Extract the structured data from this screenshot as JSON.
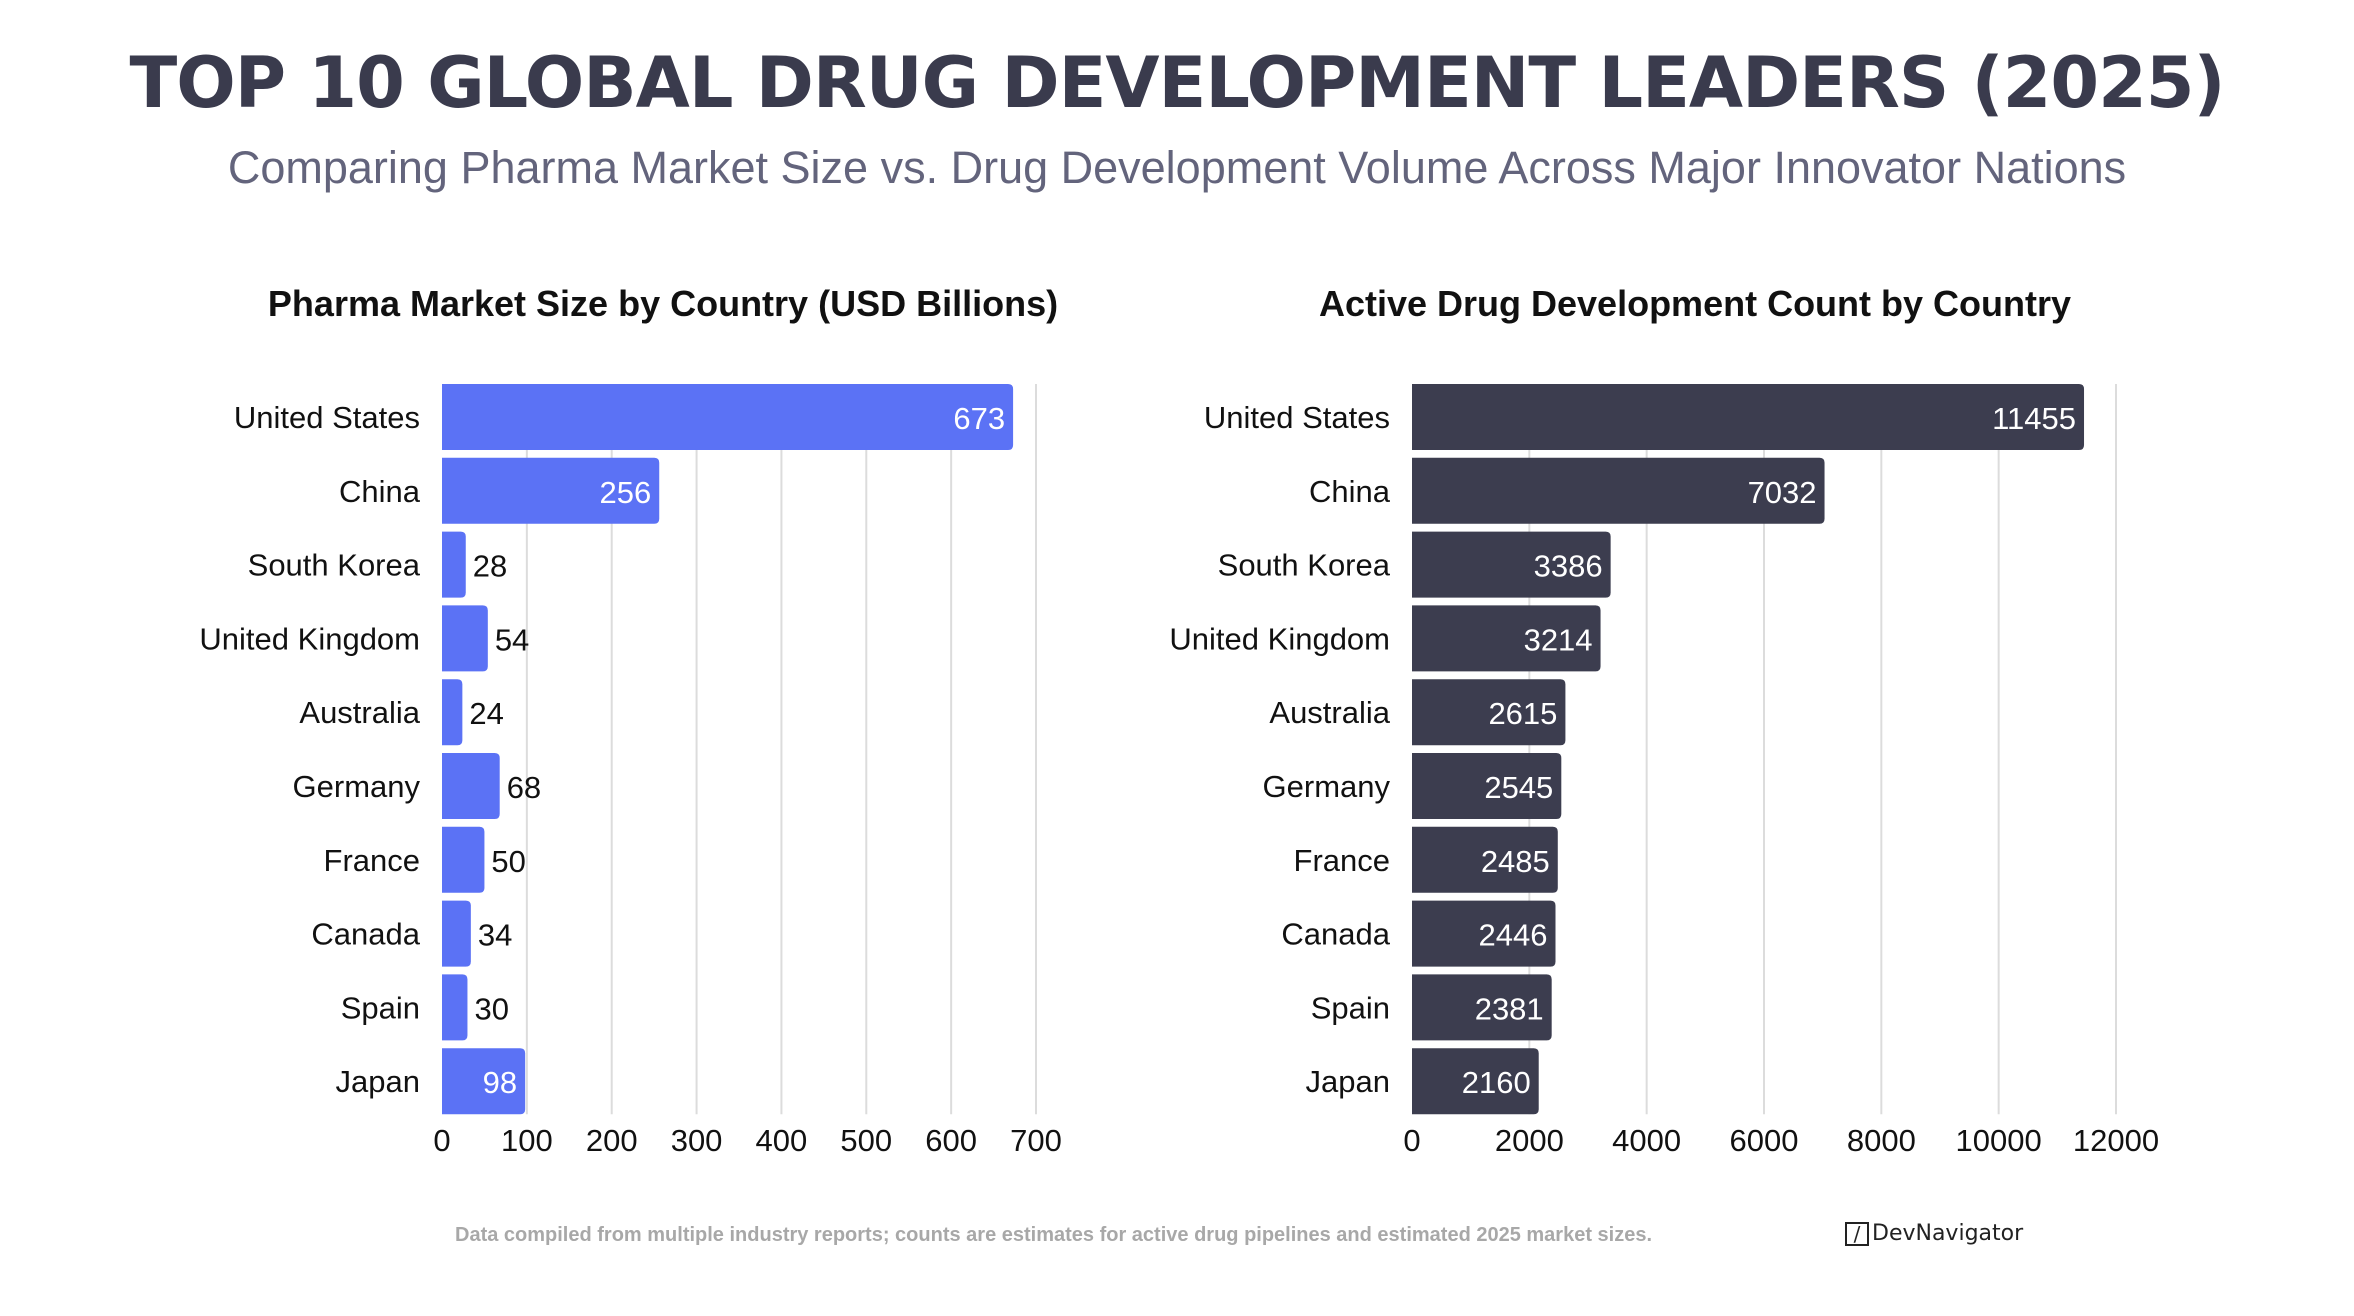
{
  "header": {
    "title": "TOP 10 GLOBAL DRUG DEVELOPMENT LEADERS (2025)",
    "subtitle": "Comparing Pharma Market Size vs. Drug Development Volume Across Major Innovator Nations"
  },
  "colors": {
    "title": "#3a3b4d",
    "subtitle": "#63647c",
    "market_bar": "#5b72f5",
    "dev_bar": "#3c3d4f",
    "gridline": "#dcdcdc",
    "footer": "#a8a8a8"
  },
  "chart_data": [
    {
      "type": "bar",
      "orientation": "horizontal",
      "title": "Pharma Market Size by Country (USD Billions)",
      "xlabel": "",
      "ylabel": "",
      "categories": [
        "United States",
        "China",
        "South Korea",
        "United Kingdom",
        "Australia",
        "Germany",
        "France",
        "Canada",
        "Spain",
        "Japan"
      ],
      "values": [
        673,
        256,
        28,
        54,
        24,
        68,
        50,
        34,
        30,
        98
      ],
      "xlim": [
        0,
        700
      ],
      "xticks": [
        0,
        100,
        200,
        300,
        400,
        500,
        600,
        700
      ],
      "grid": true,
      "data_labels": true,
      "color": "#5b72f5"
    },
    {
      "type": "bar",
      "orientation": "horizontal",
      "title": "Active Drug Development Count by Country",
      "xlabel": "",
      "ylabel": "",
      "categories": [
        "United States",
        "China",
        "South Korea",
        "United Kingdom",
        "Australia",
        "Germany",
        "France",
        "Canada",
        "Spain",
        "Japan"
      ],
      "values": [
        11455,
        7032,
        3386,
        3214,
        2615,
        2545,
        2485,
        2446,
        2381,
        2160
      ],
      "xlim": [
        0,
        12000
      ],
      "xticks": [
        0,
        2000,
        4000,
        6000,
        8000,
        10000,
        12000
      ],
      "grid": true,
      "data_labels": true,
      "color": "#3c3d4f"
    }
  ],
  "footer": {
    "note": "Data compiled from multiple industry reports; counts are estimates for active drug pipelines and estimated 2025 market sizes.",
    "logo_mark": "/",
    "logo_text": "DevNavigator"
  }
}
